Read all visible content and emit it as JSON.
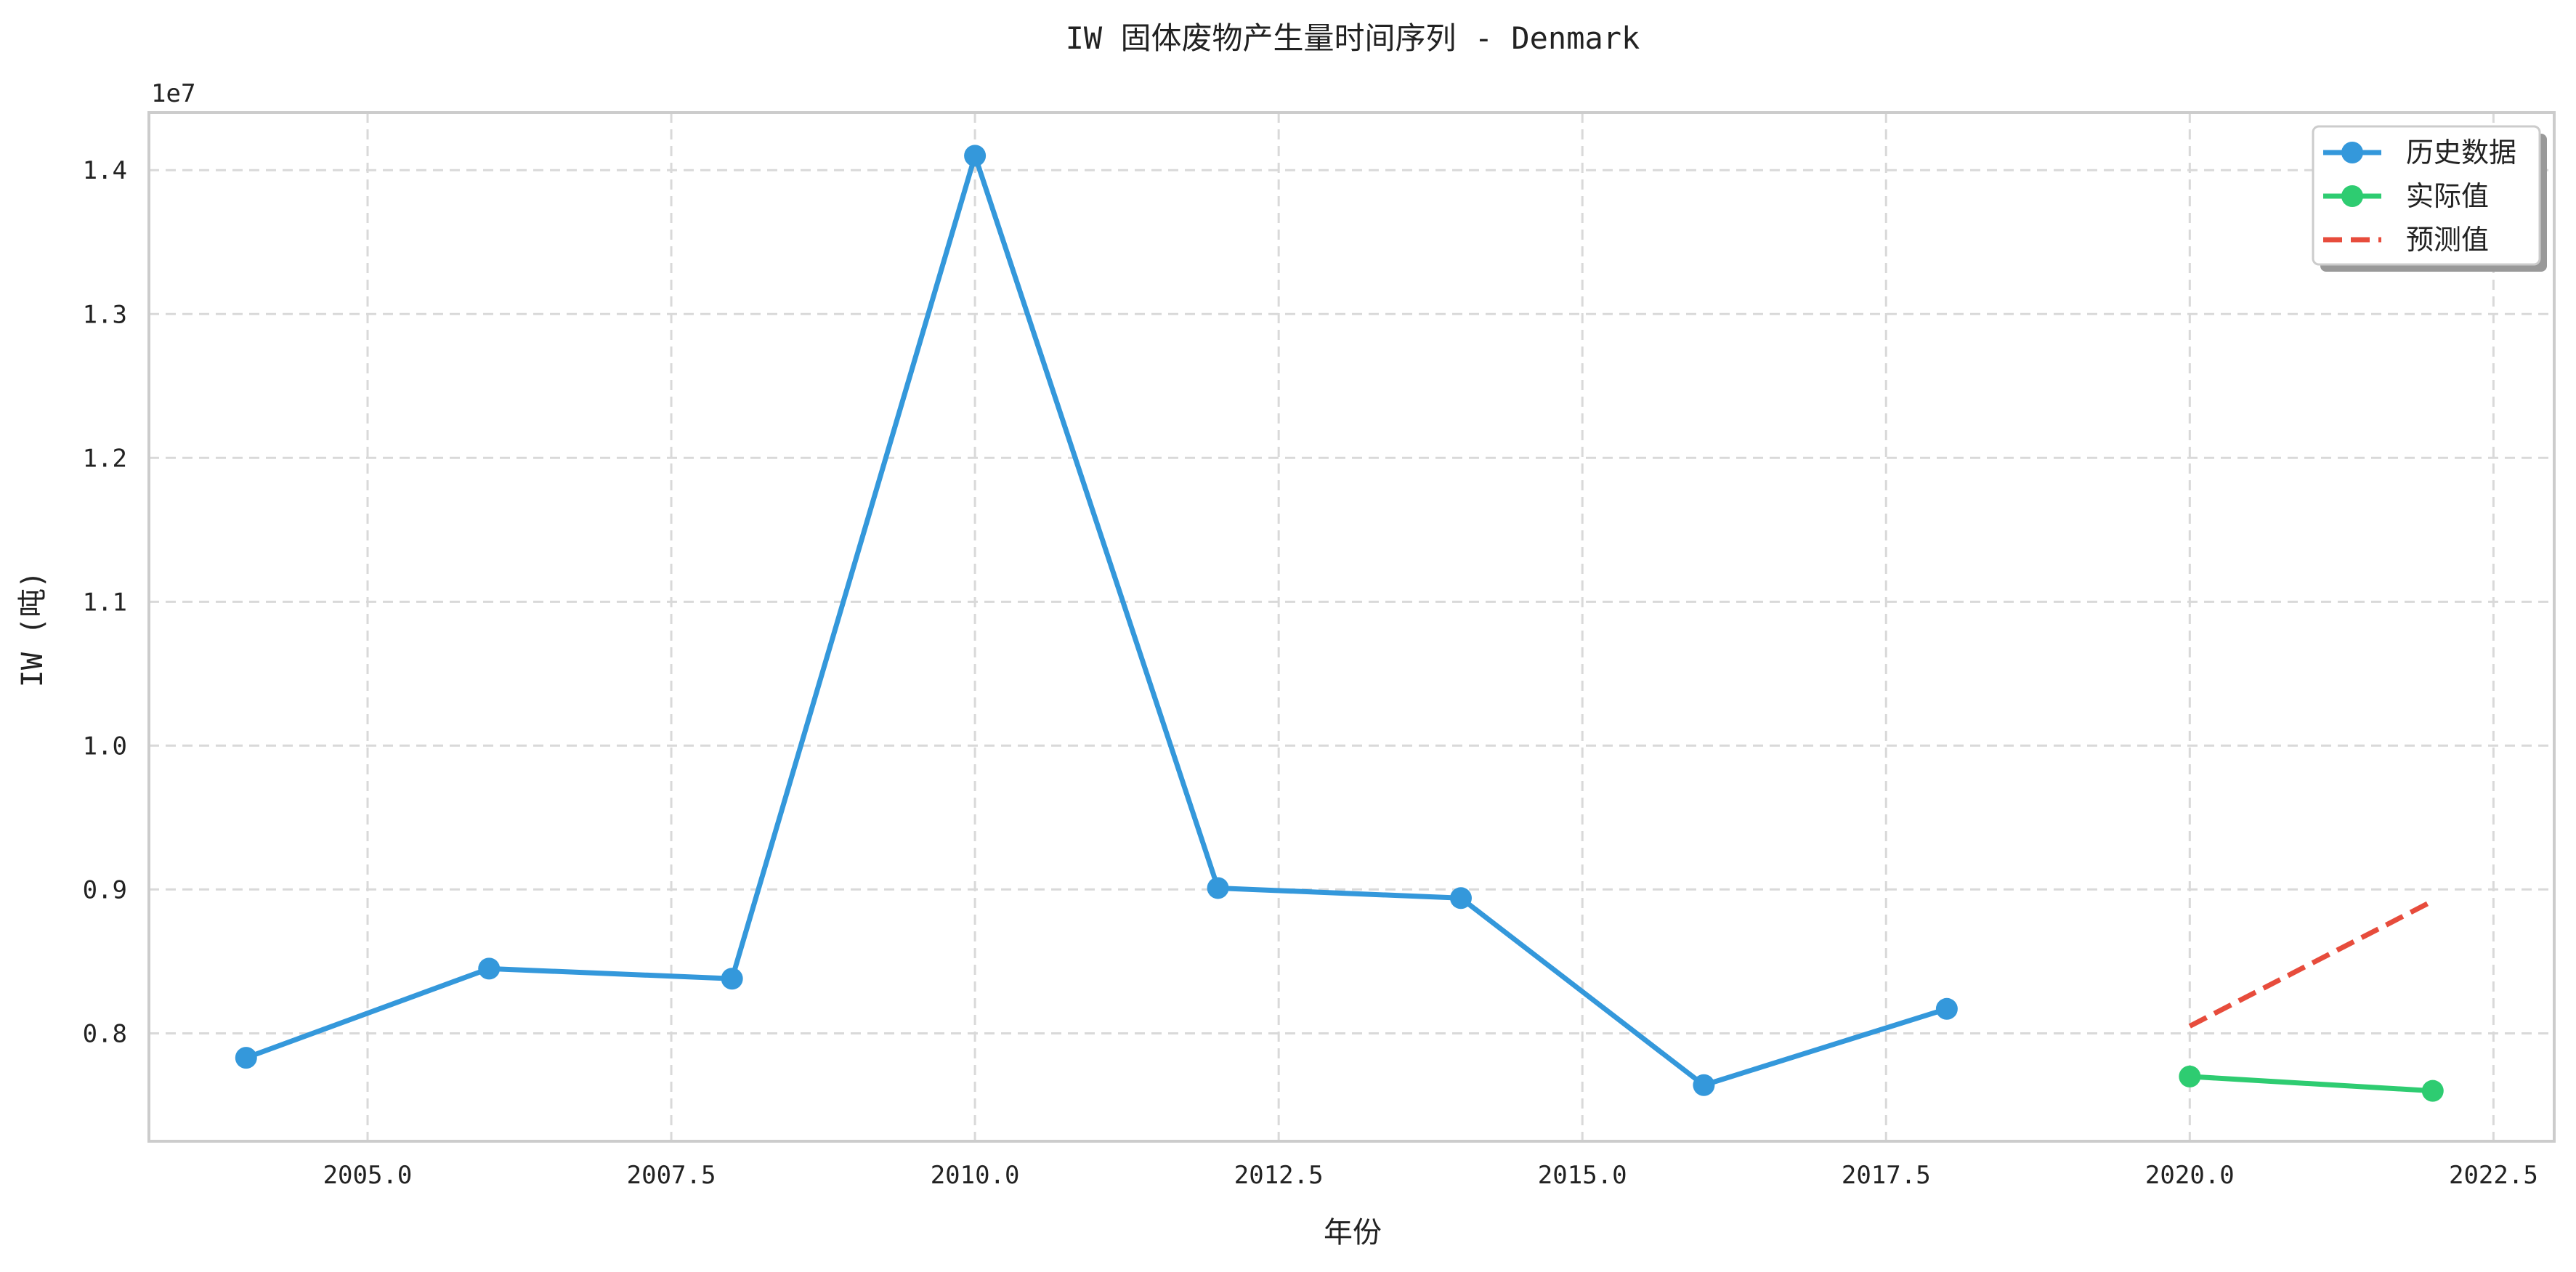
{
  "chart_data": {
    "type": "line",
    "title": "IW 固体废物产生量时间序列 - Denmark",
    "xlabel": "年份",
    "ylabel": "IW (吨)",
    "y_offset_label": "1e7",
    "xlim": [
      2003.2,
      2023.0
    ],
    "ylim": [
      7.25,
      14.4
    ],
    "x_ticks": [
      2005.0,
      2007.5,
      2010.0,
      2012.5,
      2015.0,
      2017.5,
      2020.0,
      2022.5
    ],
    "x_tick_labels": [
      "2005.0",
      "2007.5",
      "2010.0",
      "2012.5",
      "2015.0",
      "2017.5",
      "2020.0",
      "2022.5"
    ],
    "y_ticks": [
      8.0,
      9.0,
      10.0,
      11.0,
      12.0,
      13.0,
      14.0
    ],
    "y_tick_labels": [
      "0.8",
      "0.9",
      "1.0",
      "1.1",
      "1.2",
      "1.3",
      "1.4"
    ],
    "grid": true,
    "legend_position": "top-right",
    "series": [
      {
        "name": "历史数据",
        "color": "#3498db",
        "style": "solid",
        "marker": "circle",
        "x": [
          2004,
          2006,
          2008,
          2010,
          2012,
          2014,
          2016,
          2018
        ],
        "y": [
          7.83,
          8.45,
          8.38,
          14.1,
          9.01,
          8.94,
          7.64,
          8.17
        ]
      },
      {
        "name": "实际值",
        "color": "#2ecc71",
        "style": "solid",
        "marker": "circle",
        "x": [
          2020,
          2022
        ],
        "y": [
          7.7,
          7.6
        ]
      },
      {
        "name": "预测值",
        "color": "#e74c3c",
        "style": "dashed",
        "marker": "none",
        "x": [
          2020,
          2022
        ],
        "y": [
          8.05,
          8.92
        ]
      }
    ]
  }
}
